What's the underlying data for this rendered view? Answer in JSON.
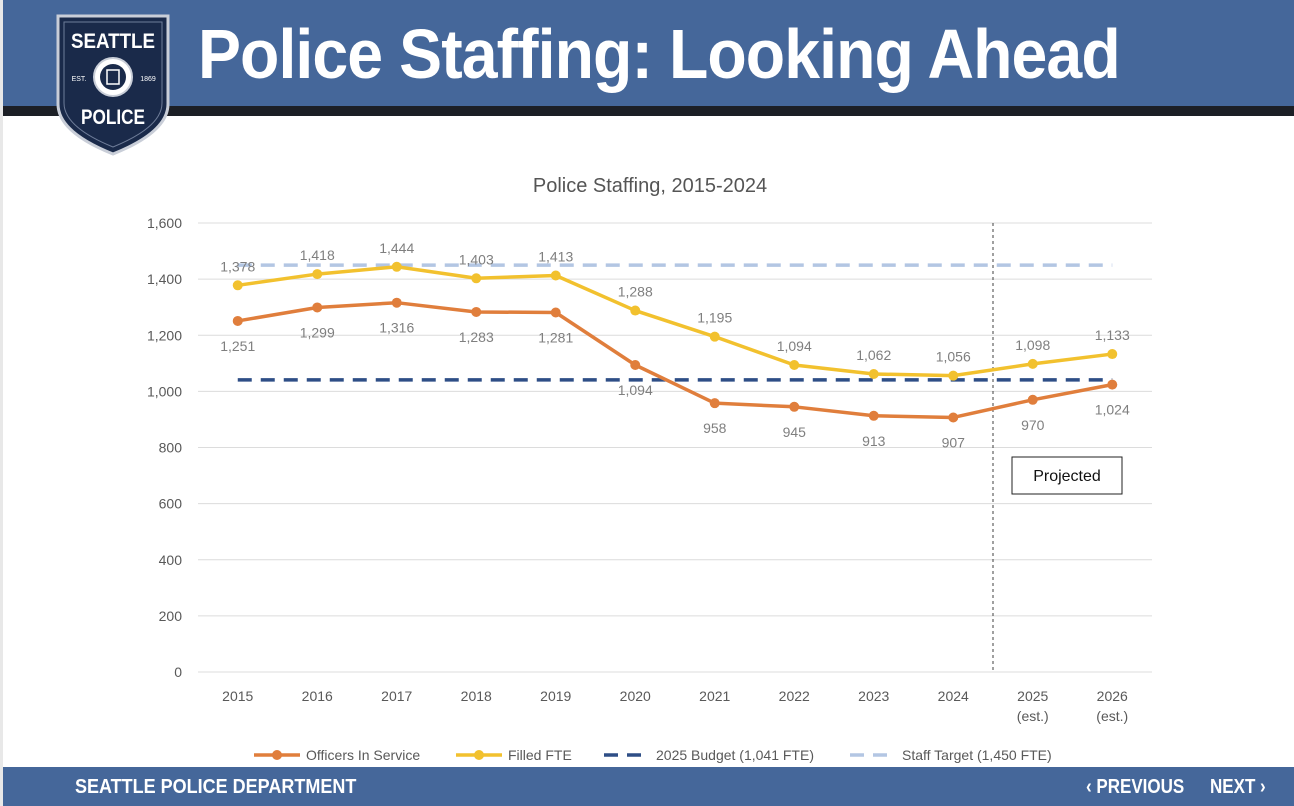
{
  "header": {
    "title": "Police Staffing: Looking Ahead",
    "badge": {
      "line1": "SEATTLE",
      "line2": "POLICE",
      "est": "EST.",
      "year": "1869"
    }
  },
  "footer": {
    "department": "SEATTLE POLICE DEPARTMENT",
    "previous_label": "‹ PREVIOUS",
    "next_label": "NEXT ›"
  },
  "colors": {
    "header_bar": "#45679a",
    "officers": "#e07e3c",
    "filled": "#f2c12e",
    "budget": "#2e4e86",
    "target": "#b3c6e3"
  },
  "chart_data": {
    "type": "line",
    "title": "Police Staffing, 2015-2024",
    "categories": [
      "2015",
      "2016",
      "2017",
      "2018",
      "2019",
      "2020",
      "2021",
      "2022",
      "2023",
      "2024",
      "2025\n(est.)",
      "2026\n(est.)"
    ],
    "ylim": [
      0,
      1600
    ],
    "yticks": [
      0,
      200,
      400,
      600,
      800,
      1000,
      1200,
      1400,
      1600
    ],
    "ytick_labels": [
      "0",
      "200",
      "400",
      "600",
      "800",
      "1,000",
      "1,200",
      "1,400",
      "1,600"
    ],
    "grid": true,
    "legend_position": "bottom",
    "projected_label": "Projected",
    "projected_from_index": 10,
    "series": [
      {
        "name": "Officers In Service",
        "color": "#e07e3c",
        "values": [
          1251,
          1299,
          1316,
          1283,
          1281,
          1094,
          958,
          945,
          913,
          907,
          970,
          1024
        ],
        "labels": [
          "1,251",
          "1,299",
          "1,316",
          "1,283",
          "1,281",
          "1,094",
          "958",
          "945",
          "913",
          "907",
          "970",
          "1,024"
        ]
      },
      {
        "name": "Filled FTE",
        "color": "#f2c12e",
        "values": [
          1378,
          1418,
          1444,
          1403,
          1413,
          1288,
          1195,
          1094,
          1062,
          1056,
          1098,
          1133
        ],
        "labels": [
          "1,378",
          "1,418",
          "1,444",
          "1,403",
          "1,413",
          "1,288",
          "1,195",
          "1,094",
          "1,062",
          "1,056",
          "1,098",
          "1,133"
        ]
      }
    ],
    "reference_lines": [
      {
        "name": "2025 Budget (1,041 FTE)",
        "value": 1041,
        "color": "#2e4e86"
      },
      {
        "name": "Staff Target (1,450 FTE)",
        "value": 1450,
        "color": "#b3c6e3"
      }
    ]
  }
}
